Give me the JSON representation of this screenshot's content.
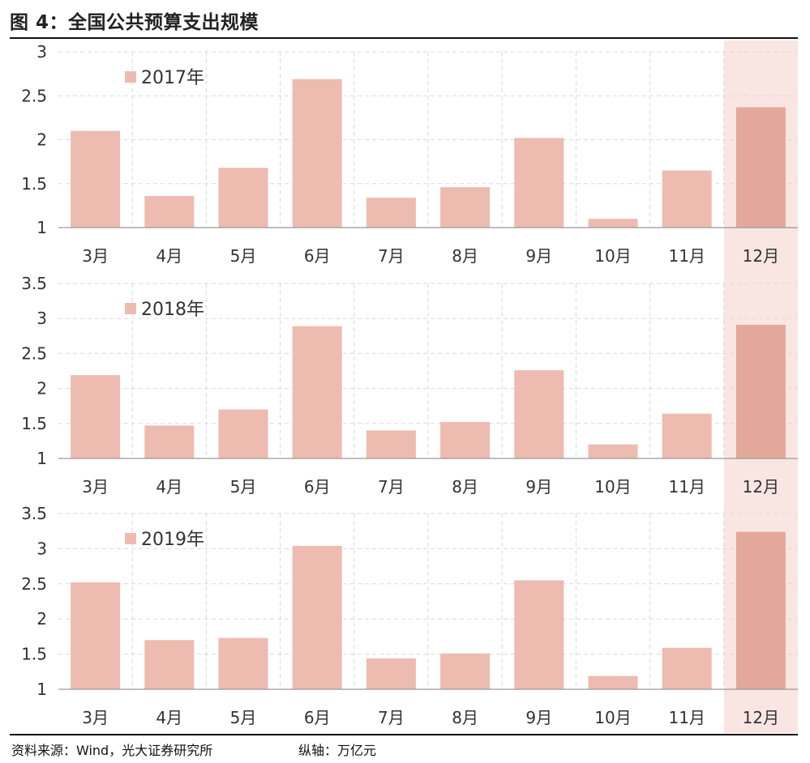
{
  "title": "图 4：全国公共预算支出规模",
  "source": "资料来源：Wind，光大证券研究所",
  "unit_note": "纵轴：万亿元",
  "colors": {
    "bar": "#edbbb0",
    "bar_highlight": "#e4a89b",
    "highlight_band": "#f9e6e2",
    "grid": "#d9d9d9",
    "axis": "#999999",
    "text": "#333333"
  },
  "chart_data": [
    {
      "type": "bar",
      "legend": "2017年",
      "categories": [
        "3月",
        "4月",
        "5月",
        "6月",
        "7月",
        "8月",
        "9月",
        "10月",
        "11月",
        "12月"
      ],
      "values": [
        2.1,
        1.36,
        1.68,
        2.69,
        1.34,
        1.46,
        2.02,
        1.1,
        1.65,
        2.37
      ],
      "ylim": [
        1,
        3
      ],
      "yticks": [
        "1",
        "1.5",
        "2",
        "2.5",
        "3"
      ],
      "highlight": "12月",
      "grid": true
    },
    {
      "type": "bar",
      "legend": "2018年",
      "categories": [
        "3月",
        "4月",
        "5月",
        "6月",
        "7月",
        "8月",
        "9月",
        "10月",
        "11月",
        "12月"
      ],
      "values": [
        2.19,
        1.47,
        1.7,
        2.89,
        1.4,
        1.52,
        2.26,
        1.2,
        1.64,
        2.91
      ],
      "ylim": [
        1,
        3.5
      ],
      "yticks": [
        "1",
        "1.5",
        "2",
        "2.5",
        "3",
        "3.5"
      ],
      "highlight": "12月",
      "grid": true
    },
    {
      "type": "bar",
      "legend": "2019年",
      "categories": [
        "3月",
        "4月",
        "5月",
        "6月",
        "7月",
        "8月",
        "9月",
        "10月",
        "11月",
        "12月"
      ],
      "values": [
        2.52,
        1.7,
        1.73,
        3.04,
        1.44,
        1.51,
        2.55,
        1.19,
        1.59,
        3.24
      ],
      "ylim": [
        1,
        3.5
      ],
      "yticks": [
        "1",
        "1.5",
        "2",
        "2.5",
        "3",
        "3.5"
      ],
      "highlight": "12月",
      "grid": true
    }
  ]
}
